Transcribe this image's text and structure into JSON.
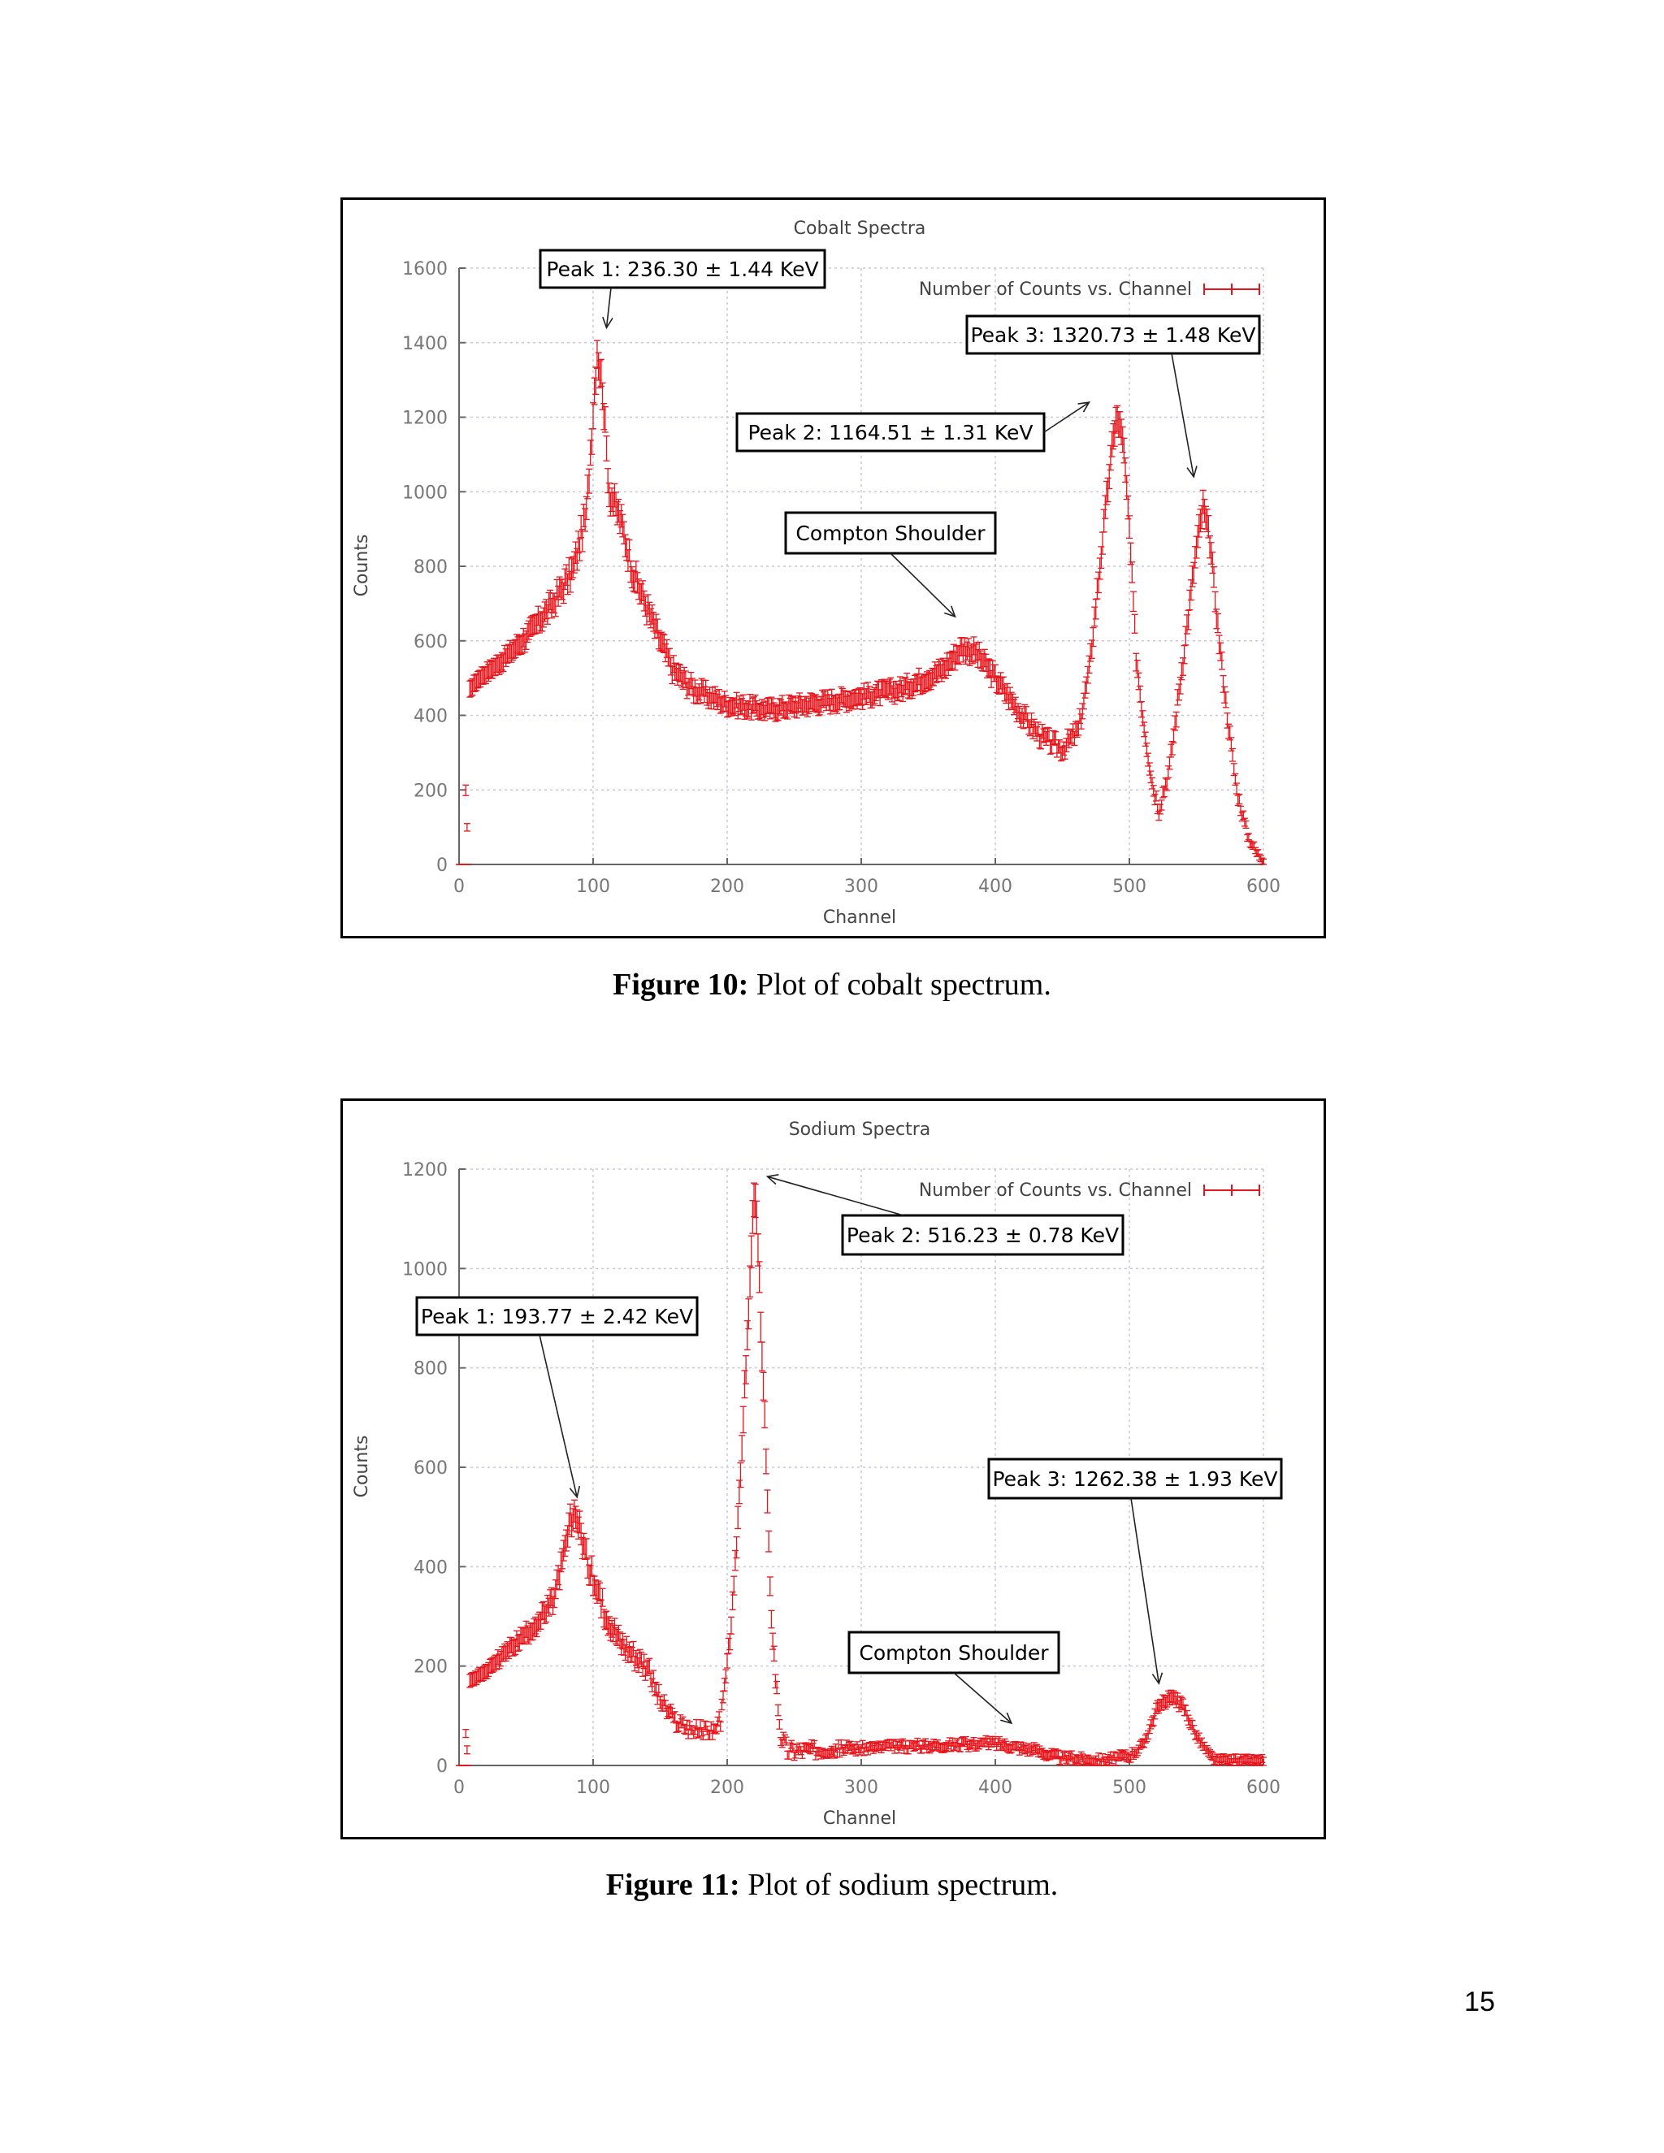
{
  "figures": [
    {
      "caption_label": "Figure 10:",
      "caption_text": "Plot of cobalt spectrum.",
      "chart_data": {
        "type": "scatter",
        "title": "Cobalt Spectra",
        "xlabel": "Channel",
        "ylabel": "Counts",
        "xlim": [
          0,
          600
        ],
        "ylim": [
          0,
          1600
        ],
        "xticks": [
          0,
          100,
          200,
          300,
          400,
          500,
          600
        ],
        "yticks": [
          0,
          200,
          400,
          600,
          800,
          1000,
          1200,
          1400,
          1600
        ],
        "grid": true,
        "legend_position": "top-right",
        "series": [
          {
            "name": "Number of Counts vs. Channel",
            "color": "#e8141b",
            "error_bars": true,
            "profile": [
              [
                0,
                0
              ],
              [
                4,
                0
              ],
              [
                5,
                200
              ],
              [
                7,
                0
              ],
              [
                8,
                470
              ],
              [
                15,
                500
              ],
              [
                30,
                540
              ],
              [
                50,
                610
              ],
              [
                70,
                700
              ],
              [
                85,
                790
              ],
              [
                95,
                940
              ],
              [
                100,
                1220
              ],
              [
                103,
                1380
              ],
              [
                107,
                1280
              ],
              [
                112,
                1000
              ],
              [
                120,
                930
              ],
              [
                130,
                780
              ],
              [
                140,
                690
              ],
              [
                150,
                600
              ],
              [
                160,
                520
              ],
              [
                175,
                470
              ],
              [
                200,
                430
              ],
              [
                230,
                415
              ],
              [
                260,
                430
              ],
              [
                300,
                450
              ],
              [
                330,
                470
              ],
              [
                360,
                520
              ],
              [
                375,
                580
              ],
              [
                385,
                570
              ],
              [
                400,
                500
              ],
              [
                420,
                400
              ],
              [
                435,
                340
              ],
              [
                450,
                310
              ],
              [
                462,
                360
              ],
              [
                470,
                520
              ],
              [
                478,
                800
              ],
              [
                485,
                1050
              ],
              [
                490,
                1200
              ],
              [
                495,
                1150
              ],
              [
                500,
                900
              ],
              [
                505,
                560
              ],
              [
                510,
                400
              ],
              [
                517,
                220
              ],
              [
                522,
                150
              ],
              [
                530,
                260
              ],
              [
                540,
                550
              ],
              [
                550,
                850
              ],
              [
                555,
                960
              ],
              [
                560,
                870
              ],
              [
                567,
                600
              ],
              [
                573,
                400
              ],
              [
                580,
                200
              ],
              [
                588,
                80
              ],
              [
                595,
                30
              ],
              [
                600,
                15
              ]
            ],
            "spread": [
              [
                0,
                0
              ],
              [
                100,
                60
              ],
              [
                200,
                30
              ],
              [
                300,
                30
              ],
              [
                480,
                40
              ],
              [
                560,
                40
              ],
              [
                600,
                20
              ]
            ]
          }
        ],
        "annotations": [
          {
            "text": "Peak 1: 236.30 ± 1.44 KeV",
            "arrow_to": [
              110,
              1440
            ]
          },
          {
            "text": "Peak 2: 1164.51 ± 1.31 KeV",
            "arrow_to": [
              470,
              1240
            ]
          },
          {
            "text": "Peak 3: 1320.73 ± 1.48 KeV",
            "arrow_to": [
              548,
              1040
            ]
          },
          {
            "text": "Compton Shoulder",
            "arrow_to": [
              370,
              665
            ]
          }
        ]
      }
    },
    {
      "caption_label": "Figure 11:",
      "caption_text": "Plot of sodium spectrum.",
      "chart_data": {
        "type": "scatter",
        "title": "Sodium Spectra",
        "xlabel": "Channel",
        "ylabel": "Counts",
        "xlim": [
          0,
          600
        ],
        "ylim": [
          0,
          1200
        ],
        "xticks": [
          0,
          100,
          200,
          300,
          400,
          500,
          600
        ],
        "yticks": [
          0,
          200,
          400,
          600,
          800,
          1000,
          1200
        ],
        "grid": true,
        "legend_position": "top-right",
        "series": [
          {
            "name": "Number of Counts vs. Channel",
            "color": "#e8141b",
            "error_bars": true,
            "profile": [
              [
                0,
                0
              ],
              [
                4,
                0
              ],
              [
                5,
                65
              ],
              [
                7,
                0
              ],
              [
                8,
                170
              ],
              [
                20,
                190
              ],
              [
                40,
                240
              ],
              [
                60,
                290
              ],
              [
                70,
                330
              ],
              [
                78,
                420
              ],
              [
                83,
                490
              ],
              [
                88,
                500
              ],
              [
                95,
                420
              ],
              [
                105,
                330
              ],
              [
                120,
                250
              ],
              [
                140,
                200
              ],
              [
                150,
                130
              ],
              [
                160,
                90
              ],
              [
                175,
                70
              ],
              [
                190,
                70
              ],
              [
                195,
                90
              ],
              [
                200,
                200
              ],
              [
                205,
                350
              ],
              [
                210,
                600
              ],
              [
                215,
                850
              ],
              [
                220,
                1150
              ],
              [
                222,
                1100
              ],
              [
                225,
                900
              ],
              [
                228,
                700
              ],
              [
                232,
                350
              ],
              [
                236,
                180
              ],
              [
                240,
                60
              ],
              [
                245,
                30
              ],
              [
                300,
                35
              ],
              [
                350,
                40
              ],
              [
                400,
                45
              ],
              [
                430,
                30
              ],
              [
                450,
                15
              ],
              [
                480,
                10
              ],
              [
                500,
                20
              ],
              [
                510,
                40
              ],
              [
                520,
                110
              ],
              [
                530,
                140
              ],
              [
                540,
                120
              ],
              [
                550,
                60
              ],
              [
                560,
                20
              ],
              [
                565,
                10
              ]
            ],
            "spread": [
              [
                0,
                0
              ],
              [
                100,
                40
              ],
              [
                200,
                25
              ],
              [
                220,
                40
              ],
              [
                300,
                15
              ],
              [
                500,
                15
              ],
              [
                600,
                10
              ]
            ]
          }
        ],
        "annotations": [
          {
            "text": "Peak 1: 193.77 ± 2.42 KeV",
            "arrow_to": [
              88,
              540
            ]
          },
          {
            "text": "Peak 2: 516.23 ± 0.78 KeV",
            "arrow_to": [
              230,
              1185
            ]
          },
          {
            "text": "Peak 3: 1262.38 ± 1.93 KeV",
            "arrow_to": [
              522,
              165
            ]
          },
          {
            "text": "Compton Shoulder",
            "arrow_to": [
              412,
              85
            ]
          }
        ]
      }
    }
  ],
  "page_number": "15",
  "colors": {
    "series": "#e8141b",
    "grid": "#c8c8d8",
    "axis": "#666666",
    "tick_text": "#777777"
  }
}
